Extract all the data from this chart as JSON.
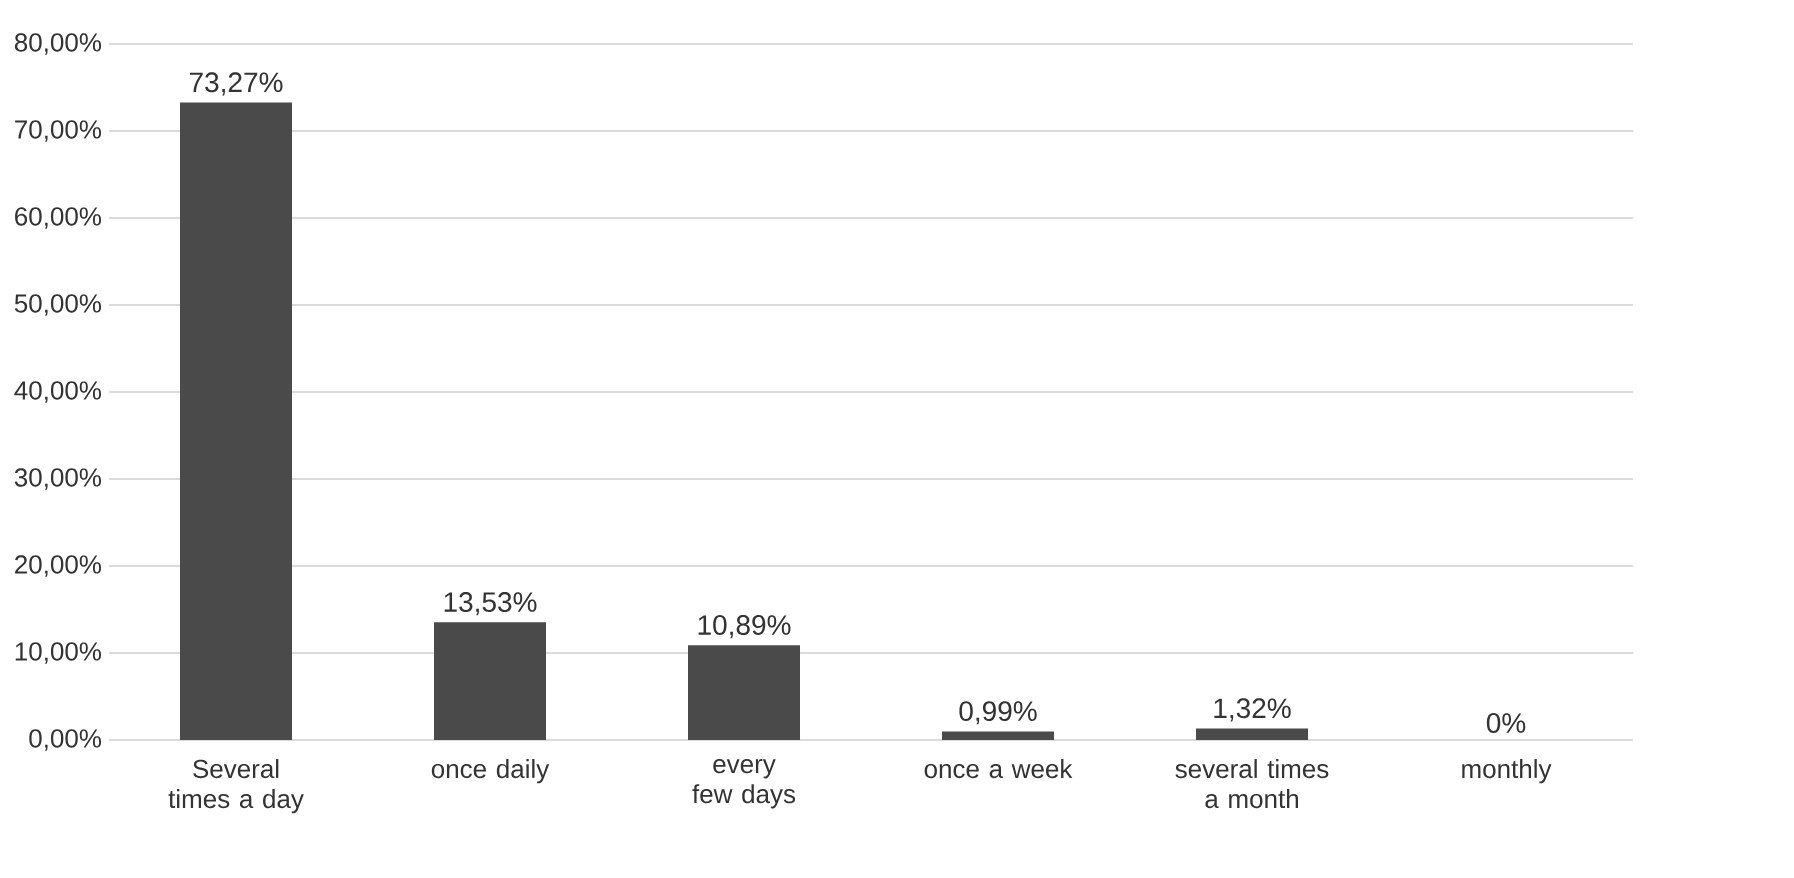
{
  "chart_data": {
    "type": "bar",
    "categories": [
      "Several times a day",
      "once daily",
      "every few days",
      "once a week",
      "several times a month",
      "monthly"
    ],
    "values": [
      73.27,
      13.53,
      10.89,
      0.99,
      1.32,
      0
    ],
    "value_labels": [
      "73,27%",
      "13,53%",
      "10,89%",
      "0,99%",
      "1,32%",
      "0%"
    ],
    "color": "#4a4a4a",
    "ylim": [
      0,
      80
    ],
    "yticks": [
      {
        "value": 0,
        "label": "0,00%"
      },
      {
        "value": 10,
        "label": "10,00%"
      },
      {
        "value": 20,
        "label": "20,00%"
      },
      {
        "value": 30,
        "label": "30,00%"
      },
      {
        "value": 40,
        "label": "40,00%"
      },
      {
        "value": 50,
        "label": "50,00%"
      },
      {
        "value": 60,
        "label": "60,00%"
      },
      {
        "value": 70,
        "label": "70,00%"
      },
      {
        "value": 80,
        "label": "80,00%"
      }
    ],
    "grid": "y"
  }
}
